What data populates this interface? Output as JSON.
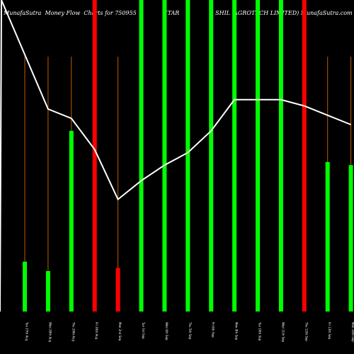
{
  "chart_data": {
    "type": "bar",
    "title": "MunafaSutra  Money Flow  Charts for 750955                (TAR                    SHIL  AGROTECH LIMITED) MunafaSutra.com",
    "colors": {
      "up": "#00ff00",
      "down": "#ff0000",
      "line": "#ffffff",
      "stem": "#c05a00",
      "background": "#000000"
    },
    "categories": [
      "Tue 27th Aug",
      "Wed 28th Aug",
      "Thu 29th Aug",
      "Fri 30th Aug",
      "Mon 2nd Sep",
      "Tue 3rd Sep",
      "Wed 4th Sep",
      "Thu 5th Sep",
      "Fri 6th Sep",
      "Mon 9th Sep",
      "Tue 10th Sep",
      "Wed 11th Sep",
      "Thu 12th Sep",
      "Fri 13th Sep",
      "Mon 16th Sep"
    ],
    "series": [
      {
        "values": [
          0.16,
          0.13,
          0.58,
          1.0,
          0.14,
          1.0,
          1.0,
          1.0,
          1.0,
          1.0,
          1.0,
          1.0,
          1.0,
          0.48,
          0.47
        ],
        "directions": [
          "up",
          "up",
          "up",
          "down",
          "down",
          "up",
          "up",
          "up",
          "up",
          "up",
          "up",
          "up",
          "down",
          "up",
          "up"
        ]
      },
      {
        "values": [
          1.0,
          0.65,
          0.62,
          0.52,
          0.36,
          0.42,
          0.47,
          0.51,
          0.58,
          0.68,
          0.68,
          0.68,
          0.66,
          0.63,
          0.6
        ]
      }
    ],
    "ylim": [
      0,
      1
    ]
  }
}
